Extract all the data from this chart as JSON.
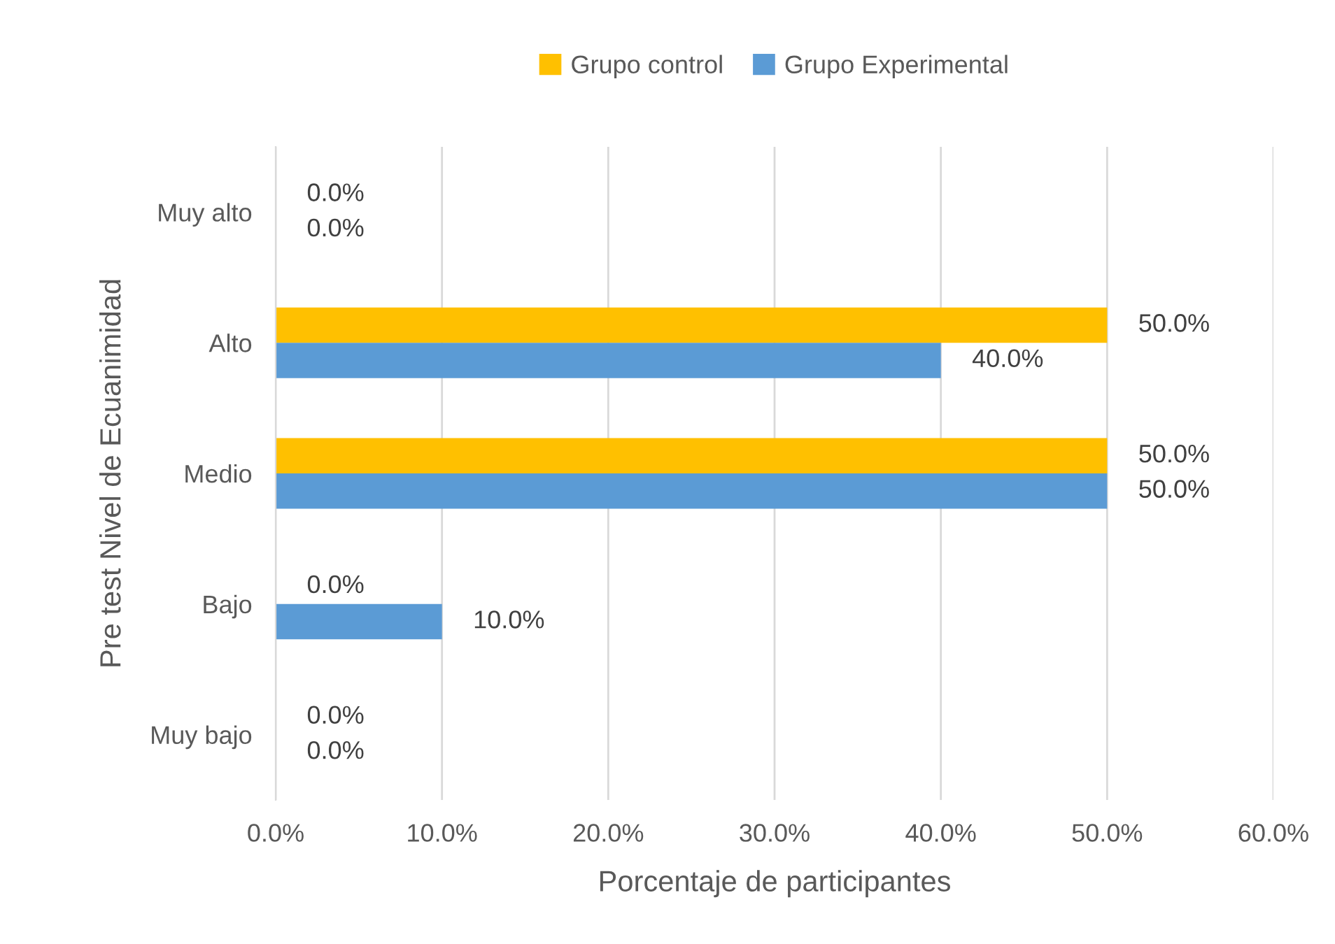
{
  "chart_data": {
    "type": "bar",
    "orientation": "horizontal",
    "xlabel": "Porcentaje de participantes",
    "ylabel": "Pre test Nivel de Ecuanimidad",
    "categories": [
      "Muy alto",
      "Alto",
      "Medio",
      "Bajo",
      "Muy bajo"
    ],
    "series": [
      {
        "name": "Grupo control",
        "color": "#ffc000",
        "values": [
          0,
          50,
          50,
          0,
          0
        ],
        "value_labels": [
          "0.0%",
          "50.0%",
          "50.0%",
          "0.0%",
          "0.0%"
        ]
      },
      {
        "name": "Grupo Experimental",
        "color": "#5b9bd5",
        "values": [
          0,
          40,
          50,
          10,
          0
        ],
        "value_labels": [
          "0.0%",
          "40.0%",
          "50.0%",
          "10.0%",
          "0.0%"
        ]
      }
    ],
    "xlim": [
      0,
      60
    ],
    "xticks": [
      {
        "value": 0,
        "label": "0.0%"
      },
      {
        "value": 10,
        "label": "10.0%"
      },
      {
        "value": 20,
        "label": "20.0%"
      },
      {
        "value": 30,
        "label": "30.0%"
      },
      {
        "value": 40,
        "label": "40.0%"
      },
      {
        "value": 50,
        "label": "50.0%"
      },
      {
        "value": 60,
        "label": "60.0%"
      }
    ],
    "grid": "x",
    "legend": "top"
  }
}
